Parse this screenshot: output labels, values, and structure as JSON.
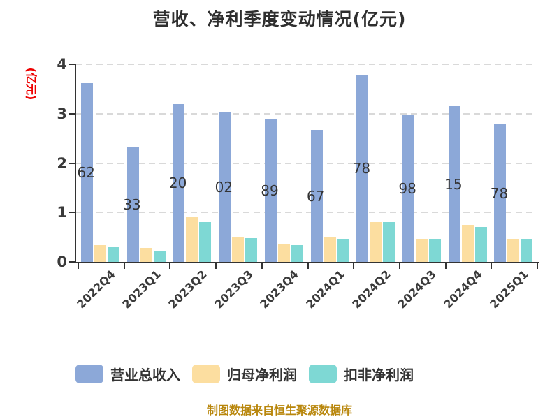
{
  "title": "营收、净利季度变动情况(亿元)",
  "y_axis": {
    "title": "(亿元)",
    "title_color": "#ee0000",
    "ticks": [
      "0",
      "1",
      "2",
      "3",
      "4"
    ]
  },
  "footer": {
    "text": "制图数据来自恒生聚源数据库",
    "color": "#b8860b"
  },
  "legend": [
    {
      "label": "营业总收入",
      "color": "#8ca8d8"
    },
    {
      "label": "归母净利润",
      "color": "#fcdea0"
    },
    {
      "label": "扣非净利润",
      "color": "#7ed8d4"
    }
  ],
  "colors": {
    "axis": "#333333",
    "grid": "#d9d9d9",
    "bar_label": "#333333"
  },
  "chart_data": {
    "type": "bar",
    "title": "营收、净利季度变动情况(亿元)",
    "ylabel": "(亿元)",
    "ylim": [
      0,
      4
    ],
    "yticks": [
      0,
      1,
      2,
      3,
      4
    ],
    "grid": "horizontal-dashed",
    "legend_position": "bottom",
    "categories": [
      "2022Q4",
      "2023Q1",
      "2023Q2",
      "2023Q3",
      "2023Q4",
      "2024Q1",
      "2024Q2",
      "2024Q3",
      "2024Q4",
      "2025Q1"
    ],
    "series": [
      {
        "name": "营业总收入",
        "color": "#8ca8d8",
        "values": [
          3.62,
          2.33,
          3.2,
          3.02,
          2.89,
          2.67,
          3.78,
          2.98,
          3.15,
          2.78
        ],
        "visible_bar_labels": [
          "62",
          "33",
          "20",
          "02",
          "89",
          "67",
          "78",
          "98",
          "15",
          "78"
        ]
      },
      {
        "name": "归母净利润",
        "color": "#fcdea0",
        "values": [
          0.34,
          0.28,
          0.9,
          0.49,
          0.37,
          0.5,
          0.81,
          0.47,
          0.75,
          0.47
        ]
      },
      {
        "name": "扣非净利润",
        "color": "#7ed8d4",
        "values": [
          0.31,
          0.21,
          0.81,
          0.48,
          0.34,
          0.47,
          0.8,
          0.47,
          0.7,
          0.46
        ]
      }
    ]
  }
}
